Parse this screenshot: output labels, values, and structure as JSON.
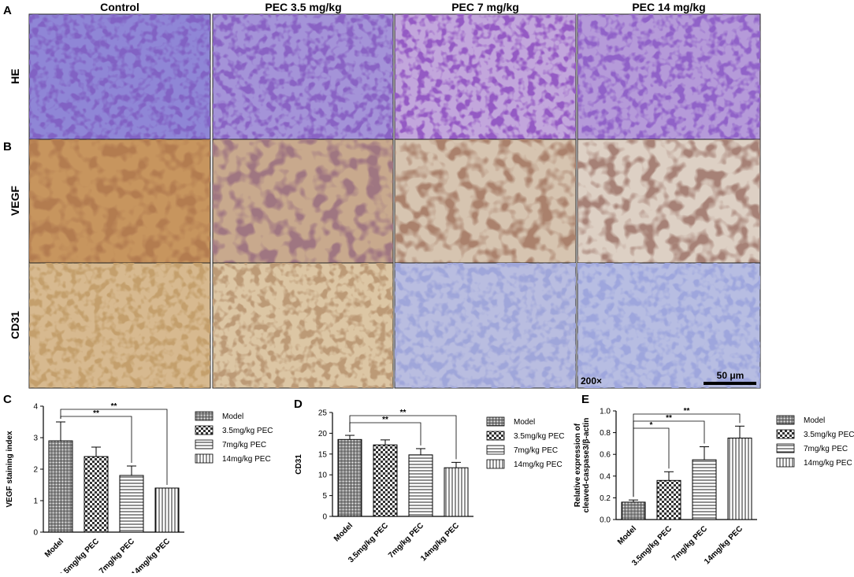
{
  "figure": {
    "panel_letters": [
      "A",
      "B",
      "C",
      "D",
      "E"
    ],
    "columns": [
      "Control",
      "PEC 3.5 mg/kg",
      "PEC 7 mg/kg",
      "PEC 14 mg/kg"
    ],
    "rows": [
      "HE",
      "VEGF",
      "CD31"
    ],
    "magnification": "200×",
    "scale_bar": "50 μm"
  },
  "chart_data": [
    {
      "type": "bar",
      "ylabel": [
        "VEGF staining index"
      ],
      "categories": [
        "Model",
        "3.5mg/kg PEC",
        "7mg/kg PEC",
        "14mg/kg PEC"
      ],
      "values": [
        2.9,
        2.4,
        1.8,
        1.4
      ],
      "errors": [
        0.6,
        0.3,
        0.3,
        0
      ],
      "patterns": [
        "grid",
        "check",
        "hlines",
        "vlines"
      ],
      "ylim": [
        0,
        4
      ],
      "yticks": [
        0,
        1,
        2,
        3,
        4
      ],
      "significance": [
        {
          "label": "**",
          "compare": [
            0,
            2
          ]
        },
        {
          "label": "**",
          "compare": [
            0,
            3
          ]
        }
      ]
    },
    {
      "type": "bar",
      "ylabel": [
        "CD31"
      ],
      "categories": [
        "Model",
        "3.5mg/kg PEC",
        "7mg/kg PEC",
        "14mg/kg PEC"
      ],
      "values": [
        18.5,
        17.2,
        14.8,
        11.7
      ],
      "errors": [
        1.0,
        1.2,
        1.5,
        1.3
      ],
      "patterns": [
        "grid",
        "check",
        "hlines",
        "vlines"
      ],
      "ylim": [
        0,
        25
      ],
      "yticks": [
        0,
        5,
        10,
        15,
        20,
        25
      ],
      "significance": [
        {
          "label": "**",
          "compare": [
            0,
            2
          ]
        },
        {
          "label": "**",
          "compare": [
            0,
            3
          ]
        }
      ]
    },
    {
      "type": "bar",
      "ylabel": [
        "Relative expression of",
        "cleaved-caspase3/β-actin"
      ],
      "categories": [
        "Model",
        "3.5mg/kg PEC",
        "7mg/kg PEC",
        "14mg/kg PEC"
      ],
      "values": [
        0.16,
        0.36,
        0.55,
        0.75
      ],
      "errors": [
        0.02,
        0.08,
        0.12,
        0.11
      ],
      "patterns": [
        "grid",
        "check",
        "hlines",
        "vlines"
      ],
      "ylim": [
        0,
        1.0
      ],
      "yticks": [
        {
          "value": 0,
          "label": "0.0"
        },
        {
          "value": 0.2,
          "label": "0.2"
        },
        {
          "value": 0.4,
          "label": "0.4"
        },
        {
          "value": 0.6,
          "label": "0.6"
        },
        {
          "value": 0.8,
          "label": "0.8"
        },
        {
          "value": 1.0,
          "label": "1.0"
        }
      ],
      "significance": [
        {
          "label": "*",
          "compare": [
            0,
            1
          ]
        },
        {
          "label": "**",
          "compare": [
            0,
            2
          ]
        },
        {
          "label": "**",
          "compare": [
            0,
            3
          ]
        }
      ]
    }
  ]
}
